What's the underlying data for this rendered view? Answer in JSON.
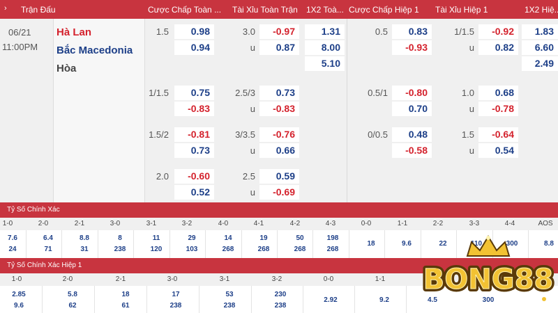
{
  "header": {
    "chevron": "›",
    "match": "Trận Đấu",
    "cols": [
      "Cược Chấp Toàn ...",
      "Tài Xỉu Toàn Trận",
      "1X2 Toà...",
      "Cược Chấp Hiệp 1",
      "Tài Xỉu Hiệp 1",
      "1X2 Hiệ..."
    ]
  },
  "match": {
    "date": "06/21",
    "time": "11:00PM",
    "home": "Hà Lan",
    "away": "Bắc Macedonia",
    "draw": "Hòa"
  },
  "odds": {
    "r0": {
      "hcap": "1.5",
      "hcap_home": "0.98",
      "hcap_away": "0.94",
      "ou": "3.0",
      "ou_u": "u",
      "ou_over": "-0.97",
      "ou_under": "0.87",
      "x12_home": "1.31",
      "x12_away": "8.00",
      "x12_draw": "5.10",
      "h1_hcap": "0.5",
      "h1_home": "0.83",
      "h1_away": "-0.93",
      "h1_ou": "1/1.5",
      "h1_u": "u",
      "h1_over": "-0.92",
      "h1_under": "0.82",
      "h1x_home": "1.83",
      "h1x_away": "6.60",
      "h1x_draw": "2.49"
    },
    "r1": {
      "hcap": "1/1.5",
      "hcap_home": "0.75",
      "hcap_away": "-0.83",
      "ou": "2.5/3",
      "ou_u": "u",
      "ou_over": "0.73",
      "ou_under": "-0.83",
      "h1_hcap": "0.5/1",
      "h1_home": "-0.80",
      "h1_away": "0.70",
      "h1_ou": "1.0",
      "h1_u": "u",
      "h1_over": "0.68",
      "h1_under": "-0.78"
    },
    "r2": {
      "hcap": "1.5/2",
      "hcap_home": "-0.81",
      "hcap_away": "0.73",
      "ou": "3/3.5",
      "ou_u": "u",
      "ou_over": "-0.76",
      "ou_under": "0.66",
      "h1_hcap": "0/0.5",
      "h1_home": "0.48",
      "h1_away": "-0.58",
      "h1_ou": "1.5",
      "h1_u": "u",
      "h1_over": "-0.64",
      "h1_under": "0.54"
    },
    "r3": {
      "hcap": "2.0",
      "hcap_home": "-0.60",
      "hcap_away": "0.52",
      "ou": "2.5",
      "ou_u": "u",
      "ou_over": "0.59",
      "ou_under": "-0.69"
    }
  },
  "correct_score": {
    "title": "Tỷ Số Chính Xác",
    "heads": [
      "1-0",
      "2-0",
      "2-1",
      "3-0",
      "3-1",
      "3-2",
      "4-0",
      "4-1",
      "4-2",
      "4-3",
      "0-0",
      "1-1",
      "2-2",
      "3-3",
      "4-4",
      "AOS"
    ],
    "top": [
      "7.6",
      "6.4",
      "8.8",
      "8",
      "11",
      "29",
      "14",
      "19",
      "50",
      "198",
      "18",
      "9.6",
      "22",
      "110",
      "300",
      "8.8"
    ],
    "bottom": [
      "24",
      "71",
      "31",
      "238",
      "120",
      "103",
      "268",
      "268",
      "268",
      "268",
      "",
      "",
      "",
      "",
      "",
      ""
    ]
  },
  "correct_score_h1": {
    "title": "Tỷ Số Chính Xác Hiệp 1",
    "heads": [
      "1-0",
      "2-0",
      "2-1",
      "3-0",
      "3-1",
      "3-2",
      "0-0",
      "1-1"
    ],
    "top": [
      "2.85",
      "5.8",
      "18",
      "17",
      "53",
      "230",
      "2.92",
      "9.2"
    ],
    "bottom": [
      "9.6",
      "62",
      "61",
      "238",
      "238",
      "238",
      "",
      ""
    ],
    "hidden_tail": [
      "4.5",
      "300"
    ]
  },
  "brand": {
    "logo_text": "BONG88",
    "gold": "#f2c233",
    "dark": "#5a3a08"
  }
}
